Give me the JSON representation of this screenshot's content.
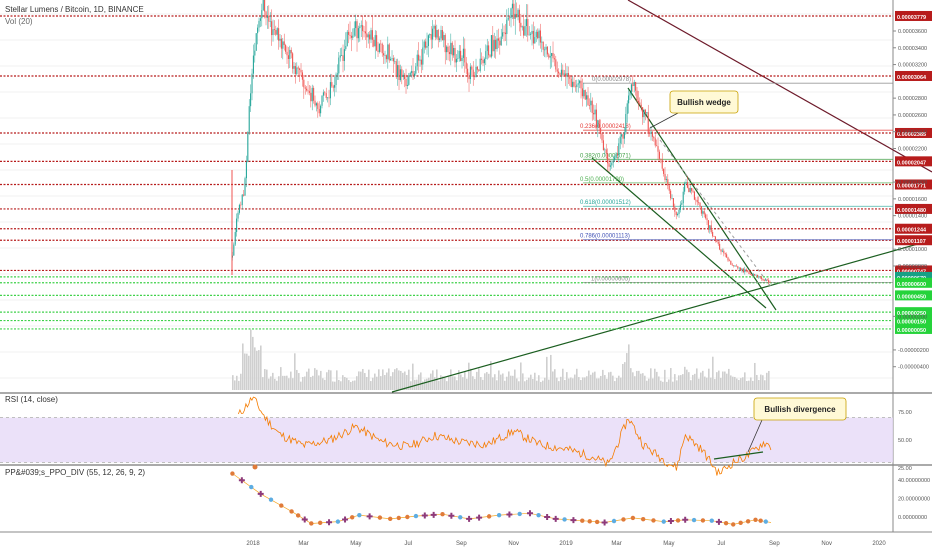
{
  "header": {
    "symbol_title": "Stellar Lumens / Bitcoin, 1D, BINANCE",
    "volume_label": "Vol (20)",
    "rsi_label": "RSI (14, close)",
    "ppo_label": "PP&#039;s_PPO_DIV (55, 12, 26, 9, 2)"
  },
  "annotations": {
    "wedge": "Bullish wedge",
    "divergence": "Bullish divergence"
  },
  "colors": {
    "up": "#26a69a",
    "down": "#ef5350",
    "resistance": "#b71c1c",
    "support": "#3fd14a",
    "rsi_line": "#f57c00",
    "rsi_band": "#e6d9f7",
    "trend_green": "#1b5e20",
    "trend_maroon": "#6d1a2a"
  },
  "chart_data": {
    "type": "candlestick",
    "price_scale": {
      "ticks": [
        "0.00003600",
        "0.00003400",
        "0.00003200",
        "0.00002800",
        "0.00002600",
        "0.00002400",
        "0.00002200",
        "0.00001800",
        "0.00001600",
        "0.00001400",
        "0.00001000",
        "0.00000800",
        "0.00000200",
        "-0.00000200",
        "-0.00000400"
      ],
      "tick_values": [
        3.6e-05,
        3.4e-05,
        3.2e-05,
        2.8e-05,
        2.6e-05,
        2.4e-05,
        2.2e-05,
        1.8e-05,
        1.6e-05,
        1.4e-05,
        1e-05,
        8e-06,
        2e-06,
        -2e-06,
        -4e-06
      ]
    },
    "resistance_levels": [
      {
        "label": "0.00003779",
        "value": 3.779e-05
      },
      {
        "label": "0.00003064",
        "value": 3.064e-05
      },
      {
        "label": "0.00002385",
        "value": 2.385e-05
      },
      {
        "label": "0.00002047",
        "value": 2.047e-05
      },
      {
        "label": "0.00001771",
        "value": 1.771e-05
      },
      {
        "label": "0.00001480",
        "value": 1.48e-05
      },
      {
        "label": "0.00001244",
        "value": 1.244e-05
      },
      {
        "label": "0.00001107",
        "value": 1.107e-05
      },
      {
        "label": "0.00000747",
        "value": 7.47e-06
      }
    ],
    "support_levels": [
      {
        "label": "0.00000670",
        "value": 6.7e-06,
        "current": true
      },
      {
        "label": "0.00000600",
        "value": 6e-06
      },
      {
        "label": "0.00000450",
        "value": 4.5e-06
      },
      {
        "label": "0.00000250",
        "value": 2.5e-06
      },
      {
        "label": "0.00000150",
        "value": 1.5e-06
      },
      {
        "label": "0.00000050",
        "value": 5e-07
      }
    ],
    "fib_levels": [
      {
        "ratio": 0,
        "label": "0(0.00002978)",
        "value": 2.978e-05
      },
      {
        "ratio": 0.236,
        "label": "0.236(0.00002418)",
        "value": 2.418e-05
      },
      {
        "ratio": 0.382,
        "label": "0.382(0.00002071)",
        "value": 2.071e-05
      },
      {
        "ratio": 0.5,
        "label": "0.5(0.00001790)",
        "value": 1.79e-05
      },
      {
        "ratio": 0.618,
        "label": "0.618(0.00001512)",
        "value": 1.512e-05
      },
      {
        "ratio": 0.786,
        "label": "0.786(0.00001113)",
        "value": 1.113e-05
      },
      {
        "ratio": 1,
        "label": "1(0.00000605)",
        "value": 6.05e-06
      }
    ],
    "x_axis_labels": [
      "2018",
      "Mar",
      "May",
      "Jul",
      "Sep",
      "Nov",
      "2019",
      "Mar",
      "May",
      "Jul",
      "Sep",
      "Nov",
      "2020"
    ],
    "price_path": [
      [
        "2017-12-08",
        9e-06
      ],
      [
        "2017-12-15",
        1.5e-05
      ],
      [
        "2017-12-22",
        1.7e-05
      ],
      [
        "2017-12-29",
        2.9e-05
      ],
      [
        "2018-01-05",
        3.6e-05
      ],
      [
        "2018-01-12",
        3.95e-05
      ],
      [
        "2018-01-20",
        3.7e-05
      ],
      [
        "2018-01-28",
        3.6e-05
      ],
      [
        "2018-02-10",
        3.35e-05
      ],
      [
        "2018-02-20",
        3.15e-05
      ],
      [
        "2018-03-05",
        2.9e-05
      ],
      [
        "2018-03-20",
        2.7e-05
      ],
      [
        "2018-04-05",
        3e-05
      ],
      [
        "2018-04-20",
        3.5e-05
      ],
      [
        "2018-05-05",
        3.7e-05
      ],
      [
        "2018-05-20",
        3.5e-05
      ],
      [
        "2018-06-05",
        3.35e-05
      ],
      [
        "2018-06-20",
        3.1e-05
      ],
      [
        "2018-07-01",
        3e-05
      ],
      [
        "2018-07-15",
        3.3e-05
      ],
      [
        "2018-08-01",
        3.6e-05
      ],
      [
        "2018-08-15",
        3.4e-05
      ],
      [
        "2018-09-01",
        3.3e-05
      ],
      [
        "2018-09-15",
        3.05e-05
      ],
      [
        "2018-10-01",
        3.35e-05
      ],
      [
        "2018-10-15",
        3.5e-05
      ],
      [
        "2018-11-01",
        3.8e-05
      ],
      [
        "2018-11-20",
        3.6e-05
      ],
      [
        "2018-12-05",
        3.4e-05
      ],
      [
        "2018-12-20",
        3.2e-05
      ],
      [
        "2019-01-01",
        3.1e-05
      ],
      [
        "2019-01-15",
        2.95e-05
      ],
      [
        "2019-02-01",
        2.7e-05
      ],
      [
        "2019-02-15",
        2.15e-05
      ],
      [
        "2019-02-25",
        1.99e-05
      ],
      [
        "2019-03-10",
        2.45e-05
      ],
      [
        "2019-03-18",
        2.978e-05
      ],
      [
        "2019-03-30",
        2.7e-05
      ],
      [
        "2019-04-10",
        2.4e-05
      ],
      [
        "2019-04-22",
        2e-05
      ],
      [
        "2019-05-01",
        1.7e-05
      ],
      [
        "2019-05-10",
        1.35e-05
      ],
      [
        "2019-05-20",
        1.78e-05
      ],
      [
        "2019-06-01",
        1.6e-05
      ],
      [
        "2019-06-15",
        1.3e-05
      ],
      [
        "2019-06-30",
        1e-05
      ],
      [
        "2019-07-10",
        8.5e-06
      ],
      [
        "2019-07-25",
        7.5e-06
      ],
      [
        "2019-08-10",
        6.8e-06
      ],
      [
        "2019-08-20",
        6.3e-06
      ],
      [
        "2019-08-28",
        6.05e-06
      ]
    ],
    "rsi": {
      "ticks": [
        "75.00",
        "50.00",
        "25.00"
      ],
      "overbought": 70,
      "oversold": 30,
      "path": [
        [
          "2017-12-15",
          72
        ],
        [
          "2018-01-01",
          88
        ],
        [
          "2018-01-15",
          70
        ],
        [
          "2018-02-01",
          55
        ],
        [
          "2018-03-01",
          45
        ],
        [
          "2018-04-01",
          50
        ],
        [
          "2018-05-01",
          62
        ],
        [
          "2018-06-01",
          48
        ],
        [
          "2018-07-01",
          44
        ],
        [
          "2018-08-01",
          54
        ],
        [
          "2018-09-01",
          48
        ],
        [
          "2018-10-01",
          46
        ],
        [
          "2018-11-01",
          58
        ],
        [
          "2018-12-01",
          46
        ],
        [
          "2019-01-01",
          42
        ],
        [
          "2019-02-01",
          35
        ],
        [
          "2019-02-20",
          28
        ],
        [
          "2019-03-15",
          70
        ],
        [
          "2019-04-01",
          46
        ],
        [
          "2019-04-20",
          35
        ],
        [
          "2019-05-10",
          25
        ],
        [
          "2019-05-20",
          55
        ],
        [
          "2019-06-10",
          40
        ],
        [
          "2019-06-28",
          20
        ],
        [
          "2019-07-15",
          30
        ],
        [
          "2019-08-01",
          36
        ],
        [
          "2019-08-20",
          48
        ],
        [
          "2019-08-28",
          44
        ]
      ]
    },
    "ppo": {
      "ticks": [
        "40.00000000",
        "20.00000000",
        "0.00000000"
      ],
      "path": [
        [
          "2017-12-08",
          47
        ],
        [
          "2018-01-10",
          25
        ],
        [
          "2018-02-15",
          6
        ],
        [
          "2018-03-10",
          -7
        ],
        [
          "2018-04-10",
          -5
        ],
        [
          "2018-05-05",
          2
        ],
        [
          "2018-06-10",
          -2
        ],
        [
          "2018-07-10",
          1
        ],
        [
          "2018-08-10",
          3
        ],
        [
          "2018-09-10",
          -2
        ],
        [
          "2018-10-15",
          2
        ],
        [
          "2018-11-20",
          4
        ],
        [
          "2018-12-20",
          -2
        ],
        [
          "2019-01-20",
          -4
        ],
        [
          "2019-02-15",
          -6
        ],
        [
          "2019-03-20",
          -1
        ],
        [
          "2019-04-25",
          -5
        ],
        [
          "2019-05-20",
          -3
        ],
        [
          "2019-06-20",
          -4
        ],
        [
          "2019-07-15",
          -8
        ],
        [
          "2019-08-10",
          -3
        ],
        [
          "2019-08-28",
          -6
        ]
      ]
    }
  }
}
